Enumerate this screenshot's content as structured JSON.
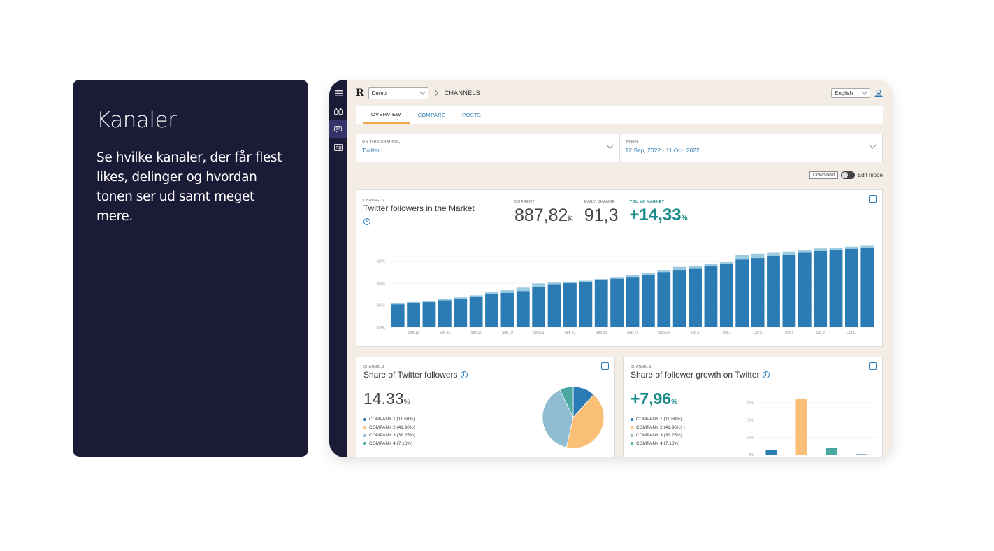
{
  "info": {
    "title": "Kanaler",
    "body": "Se hvilke kanaler, der får flest likes, delinger og hvordan tonen ser ud samt meget mere."
  },
  "app": {
    "logo": "R",
    "workspace": "Demo",
    "breadcrumb": "CHANNELS",
    "language": "English",
    "tabs": [
      "OVERVIEW",
      "COMPARE",
      "POSTS"
    ],
    "filters": {
      "channel_label": "ON THIS CHANNEL",
      "channel_value": "Twitter",
      "when_label": "WHEN",
      "when_value": "12 Sep, 2022 - 11 Oct, 2022"
    },
    "tools": {
      "download": "Download",
      "edit_mode": "Edit mode"
    },
    "colors": {
      "primary": "#2a7ab5",
      "bar": "#2b7bb4",
      "bar_light": "#9ccae0",
      "accent": "#1a8a8a",
      "rail": "#1b1a37"
    }
  },
  "followers_card": {
    "tag": "CHANNELS",
    "title": "Twitter followers in the Market",
    "kpis": {
      "current_label": "CURRENT",
      "current_value": "887,82",
      "current_unit": "K",
      "daily_label": "DAILY CHANGE",
      "daily_value": "91,3",
      "vs_label": "YOU VS MARKET",
      "vs_value": "+14,33",
      "vs_unit": "%"
    }
  },
  "chart_data": [
    {
      "type": "bar",
      "title": "Twitter followers in the Market",
      "ylim": [
        884,
        888
      ],
      "yticks": [
        "887k",
        "886k",
        "885k",
        "884k"
      ],
      "xtick_labels": [
        "Sep 13",
        "Sep 15",
        "Sep 17",
        "Sep 19",
        "Sep 21",
        "Sep 23",
        "Sep 25",
        "Sep 27",
        "Sep 29",
        "Oct 1",
        "Oct 3",
        "Oct 5",
        "Oct 7",
        "Oct 9",
        "Oct 11"
      ],
      "series": [
        {
          "name": "Base",
          "values": [
            885.04,
            885.09,
            885.14,
            885.22,
            885.3,
            885.37,
            885.5,
            885.56,
            885.64,
            885.84,
            885.95,
            886.0,
            886.06,
            886.13,
            886.2,
            886.28,
            886.37,
            886.5,
            886.6,
            886.68,
            886.76,
            886.87,
            887.07,
            887.14,
            887.24,
            887.3,
            887.38,
            887.46,
            887.5,
            887.56,
            887.6
          ]
        },
        {
          "name": "Growth",
          "values": [
            0.06,
            0.06,
            0.05,
            0.06,
            0.06,
            0.08,
            0.1,
            0.12,
            0.16,
            0.15,
            0.08,
            0.07,
            0.05,
            0.06,
            0.08,
            0.1,
            0.1,
            0.1,
            0.14,
            0.1,
            0.1,
            0.1,
            0.22,
            0.2,
            0.14,
            0.14,
            0.14,
            0.12,
            0.1,
            0.1,
            0.1
          ]
        }
      ]
    },
    {
      "type": "pie",
      "title": "Share of Twitter followers",
      "categories": [
        "COMPANY 1",
        "COMPANY 2",
        "COMPANY 3",
        "COMPANY 4"
      ],
      "values": [
        11.68,
        41.9,
        39.25,
        7.16
      ],
      "colors": [
        "#2b7bb4",
        "#f9bf76",
        "#8fbcd0",
        "#4aa8a0"
      ]
    },
    {
      "type": "bar",
      "title": "Share of follower growth on Twitter",
      "ylim": [
        0,
        80
      ],
      "yticks": [
        "75%",
        "50%",
        "25%",
        "0%"
      ],
      "categories": [
        "COMPANY 1",
        "COMPANY 2",
        "COMPANY 3",
        "COMPANY 4"
      ],
      "values": [
        7,
        80,
        10,
        1
      ],
      "colors": [
        "#2b7bb4",
        "#f9bf76",
        "#4aa8a0",
        "#8fbcd0"
      ]
    }
  ],
  "share_card": {
    "tag": "CHANNELS",
    "title": "Share of Twitter followers",
    "value": "14.33",
    "unit": "%",
    "legend": [
      "COMPANY 1 (11.68%)",
      "COMPANY 2 (41.90%)",
      "COMPANY 3 (39.25%)",
      "COMPANY 4 (7.16%)"
    ]
  },
  "growth_card": {
    "tag": "CHANNELS",
    "title": "Share of follower growth on Twitter",
    "value": "+7,96",
    "unit": "%",
    "legend": [
      "COMPANY 1 (11.68%)",
      "COMPANY 2 (41.90%) )",
      "COMPANY 3 (39.25%)",
      "COMPANY 4 (7.16%)"
    ]
  }
}
